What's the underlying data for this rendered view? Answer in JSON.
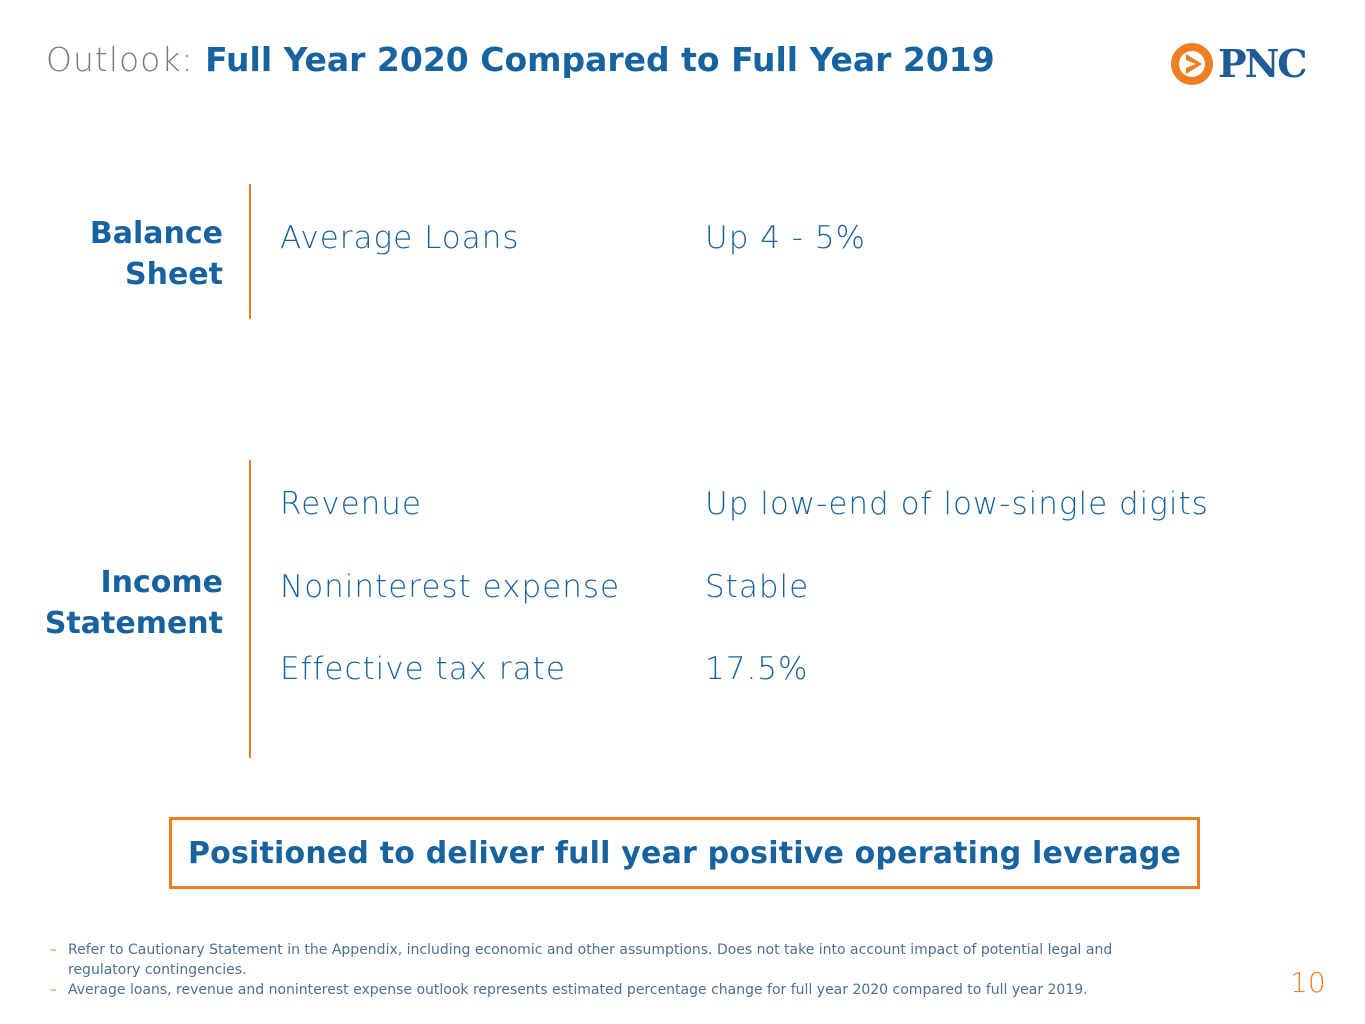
{
  "header": {
    "title_prefix": "Outlook:",
    "title_main": "Full Year 2020 Compared to Full Year 2019",
    "logo_text": "PNC"
  },
  "balance_sheet": {
    "label_line1": "Balance",
    "label_line2": "Sheet",
    "rows": [
      {
        "metric": "Average Loans",
        "value": "Up 4 - 5%"
      }
    ]
  },
  "income_statement": {
    "label_line1": "Income",
    "label_line2": "Statement",
    "rows": [
      {
        "metric": "Revenue",
        "value": "Up low-end of low-single digits"
      },
      {
        "metric": "Noninterest expense",
        "value": "Stable"
      },
      {
        "metric": "Effective tax rate",
        "value": "17.5%"
      }
    ]
  },
  "callout": "Positioned to deliver full year positive operating leverage",
  "footnotes": {
    "bullet": "–",
    "items": [
      "Refer to Cautionary Statement in the Appendix, including economic and other assumptions. Does not take into account impact of potential legal and regulatory contingencies.",
      "Average loans, revenue and noninterest expense outlook represents estimated percentage change for full year 2020 compared to full year 2019."
    ]
  },
  "page_number": "10",
  "colors": {
    "brand_blue": "#17639f",
    "brand_orange": "#ee7d23",
    "title_gray": "#7a7a7a"
  }
}
